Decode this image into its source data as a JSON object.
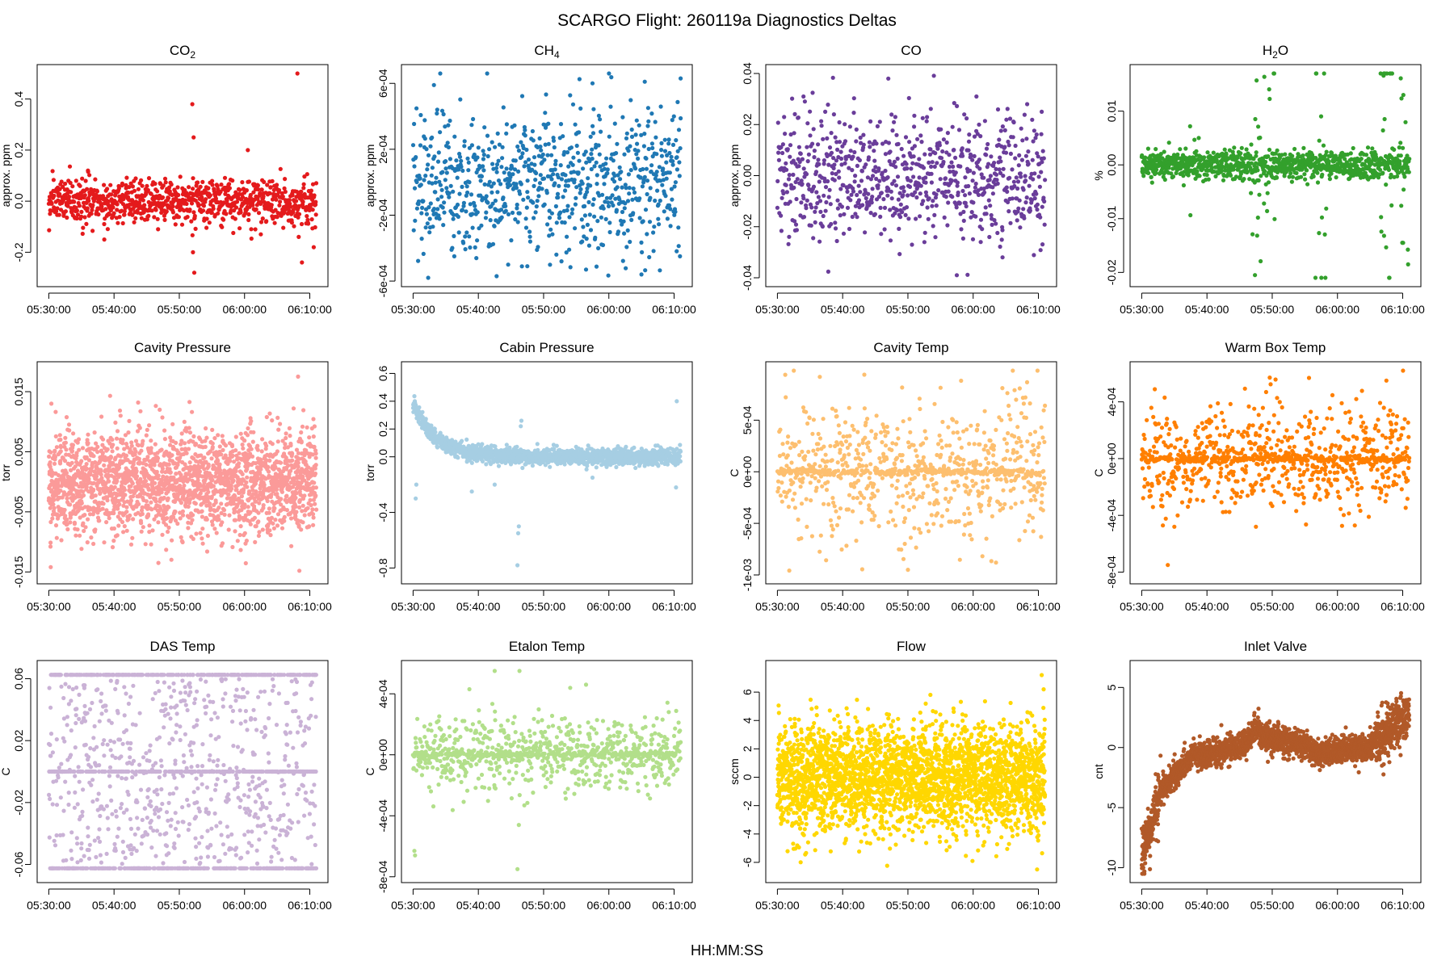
{
  "figure": {
    "title": "SCARGO Flight: 260119a  Diagnostics Deltas",
    "xlabel": "HH:MM:SS"
  },
  "chart_data": [
    {
      "type": "scatter",
      "title": "CO",
      "title_sub": "2",
      "ylabel": "approx. ppm",
      "color": "#e41a1c",
      "ylim": [
        -0.3,
        0.5
      ],
      "yticks": [
        {
          "v": -0.2,
          "label": "-0.2"
        },
        {
          "v": 0.0,
          "label": "0.0"
        },
        {
          "v": 0.2,
          "label": "0.2"
        },
        {
          "v": 0.4,
          "label": "0.4"
        }
      ],
      "xticks": [
        "05:30:00",
        "05:40:00",
        "05:50:00",
        "06:00:00",
        "06:10:00"
      ],
      "xlim_min": [
        0,
        41
      ],
      "model": {
        "n": 900,
        "spread": 0.045,
        "outliers": [
          [
            22.0,
            0.38
          ],
          [
            22.2,
            0.25
          ],
          [
            22.3,
            -0.28
          ],
          [
            22.1,
            -0.2
          ],
          [
            38.1,
            0.51
          ],
          [
            38.3,
            -0.14
          ],
          [
            38.8,
            -0.24
          ],
          [
            6.0,
            0.12
          ],
          [
            30.5,
            0.2
          ],
          [
            40.6,
            -0.18
          ],
          [
            8.5,
            -0.15
          ],
          [
            32.5,
            -0.13
          ]
        ]
      }
    },
    {
      "type": "scatter",
      "title": "CH",
      "title_sub": "4",
      "ylabel": "approx. ppm",
      "color": "#1f78b4",
      "ylim": [
        -0.00058,
        0.00066
      ],
      "yticks": [
        {
          "v": -0.0006,
          "label": "-6e-04"
        },
        {
          "v": -0.0002,
          "label": "-2e-04"
        },
        {
          "v": 0.0002,
          "label": "2e-04"
        },
        {
          "v": 0.0006,
          "label": "6e-04"
        }
      ],
      "xticks": [
        "05:30:00",
        "05:40:00",
        "05:50:00",
        "06:00:00",
        "06:10:00"
      ],
      "xlim_min": [
        0,
        41
      ],
      "model": {
        "n": 800,
        "spread": 0.00022,
        "outliers": [
          [
            41,
            0.00063
          ],
          [
            3.2,
            0.00059
          ],
          [
            27.5,
            0.0006
          ],
          [
            35.5,
            0.00061
          ],
          [
            12.8,
            -0.00057
          ],
          [
            35.0,
            -0.00056
          ],
          [
            26.5,
            -0.00053
          ],
          [
            17.5,
            -0.00051
          ]
        ]
      }
    },
    {
      "type": "scatter",
      "title": "CO",
      "title_sub": "",
      "ylabel": "approx. ppm",
      "color": "#6a3d9a",
      "ylim": [
        -0.04,
        0.04
      ],
      "yticks": [
        {
          "v": -0.04,
          "label": "-0.04"
        },
        {
          "v": -0.02,
          "label": "-0.02"
        },
        {
          "v": 0.0,
          "label": "0.00"
        },
        {
          "v": 0.02,
          "label": "0.02"
        },
        {
          "v": 0.04,
          "label": "0.04"
        }
      ],
      "xticks": [
        "05:30:00",
        "05:40:00",
        "05:50:00",
        "06:00:00",
        "06:10:00"
      ],
      "xlim_min": [
        0,
        41
      ],
      "model": {
        "n": 800,
        "spread": 0.012,
        "outliers": [
          [
            17,
            0.038
          ],
          [
            27.5,
            -0.039
          ],
          [
            30.5,
            0.031
          ],
          [
            4.0,
            0.031
          ],
          [
            40.5,
            0.025
          ],
          [
            34.5,
            -0.032
          ]
        ]
      }
    },
    {
      "type": "scatter",
      "title": "H",
      "title_sub": "2",
      "title_suffix": "O",
      "ylabel": "%",
      "color": "#33a02c",
      "ylim": [
        -0.021,
        0.017
      ],
      "yticks": [
        {
          "v": -0.02,
          "label": "-0.02"
        },
        {
          "v": -0.01,
          "label": "-0.01"
        },
        {
          "v": 0.0,
          "label": "0.00"
        },
        {
          "v": 0.01,
          "label": "0.01"
        }
      ],
      "xticks": [
        "05:30:00",
        "05:40:00",
        "05:50:00",
        "06:00:00",
        "06:10:00"
      ],
      "xlim_min": [
        0,
        41
      ],
      "model": {
        "n": 1000,
        "spread": 0.0013,
        "bursts": [
          [
            8.0,
            0.006
          ],
          [
            17.5,
            0.011
          ],
          [
            19.5,
            0.012
          ],
          [
            27.5,
            0.018
          ],
          [
            37.5,
            0.017
          ],
          [
            40.5,
            0.017
          ]
        ]
      }
    },
    {
      "type": "scatter",
      "title": "Cavity Pressure",
      "title_sub": "",
      "ylabel": "torr",
      "color": "#fb9a99",
      "ylim": [
        -0.0155,
        0.0185
      ],
      "yticks": [
        {
          "v": -0.015,
          "label": "-0.015"
        },
        {
          "v": -0.005,
          "label": "-0.005"
        },
        {
          "v": 0.005,
          "label": "0.005"
        },
        {
          "v": 0.015,
          "label": "0.015"
        }
      ],
      "xticks": [
        "05:30:00",
        "05:40:00",
        "05:50:00",
        "06:00:00",
        "06:10:00"
      ],
      "xlim_min": [
        0,
        41
      ],
      "model": {
        "n": 2200,
        "spread": 0.0042,
        "outliers": [
          [
            38.2,
            0.0175
          ],
          [
            38.4,
            -0.0148
          ],
          [
            0.3,
            -0.0142
          ],
          [
            0.4,
            0.013
          ],
          [
            17,
            0.012
          ],
          [
            11,
            0.011
          ],
          [
            16.8,
            -0.0135
          ]
        ]
      }
    },
    {
      "type": "scatter",
      "title": "Cabin Pressure",
      "title_sub": "",
      "ylabel": "torr",
      "color": "#a6cee3",
      "ylim": [
        -0.85,
        0.62
      ],
      "yticks": [
        {
          "v": -0.8,
          "label": "-0.8"
        },
        {
          "v": -0.4,
          "label": "-0.4"
        },
        {
          "v": 0.0,
          "label": "0.0"
        },
        {
          "v": 0.2,
          "label": "0.2"
        },
        {
          "v": 0.4,
          "label": "0.4"
        },
        {
          "v": 0.6,
          "label": "0.6"
        }
      ],
      "xticks": [
        "05:30:00",
        "05:40:00",
        "05:50:00",
        "06:00:00",
        "06:10:00"
      ],
      "xlim_min": [
        0,
        41
      ],
      "model": {
        "n": 1400,
        "spread": 0.03,
        "decay": {
          "start": 0.38,
          "tau": 3.5
        },
        "outliers": [
          [
            16.0,
            -0.78
          ],
          [
            16.1,
            -0.55
          ],
          [
            16.2,
            -0.5
          ],
          [
            0.4,
            -0.3
          ],
          [
            0.5,
            -0.2
          ],
          [
            9,
            -0.25
          ],
          [
            12.5,
            -0.2
          ],
          [
            16.5,
            0.22
          ],
          [
            16.6,
            0.26
          ],
          [
            27.5,
            -0.15
          ],
          [
            40.4,
            0.4
          ],
          [
            40.3,
            -0.22
          ]
        ]
      }
    },
    {
      "type": "scatter",
      "title": "Cavity Temp",
      "title_sub": "",
      "ylabel": "C",
      "color": "#fdbf6f",
      "ylim": [
        -0.001,
        0.00098
      ],
      "yticks": [
        {
          "v": -0.001,
          "label": "-1e-03"
        },
        {
          "v": -0.0005,
          "label": "-5e-04"
        },
        {
          "v": 0.0,
          "label": "0e+00"
        },
        {
          "v": 0.0005,
          "label": "5e-04"
        }
      ],
      "xticks": [
        "05:30:00",
        "05:40:00",
        "05:50:00",
        "06:00:00",
        "06:10:00"
      ],
      "xlim_min": [
        0,
        41
      ],
      "model": {
        "n": 900,
        "spread": 0.00033,
        "band": 1.5e-05,
        "outliers": [
          [
            1.2,
            0.00094
          ],
          [
            20,
            -0.00095
          ],
          [
            6.5,
            0.00092
          ],
          [
            33.5,
            -0.00088
          ]
        ]
      }
    },
    {
      "type": "scatter",
      "title": "Warm Box Temp",
      "title_sub": "",
      "ylabel": "C",
      "color": "#ff7f00",
      "ylim": [
        -0.00082,
        0.00062
      ],
      "yticks": [
        {
          "v": -0.0008,
          "label": "-8e-04"
        },
        {
          "v": -0.0004,
          "label": "-4e-04"
        },
        {
          "v": 0.0,
          "label": "0e+00"
        },
        {
          "v": 0.0004,
          "label": "4e-04"
        }
      ],
      "xticks": [
        "05:30:00",
        "05:40:00",
        "05:50:00",
        "06:00:00",
        "06:10:00"
      ],
      "xlim_min": [
        0,
        41
      ],
      "model": {
        "n": 900,
        "spread": 0.00019,
        "band": 1.2e-05,
        "outliers": [
          [
            4.0,
            -0.00075
          ],
          [
            5.0,
            -0.00048
          ],
          [
            17.5,
            -0.00048
          ],
          [
            37.5,
            0.00055
          ]
        ]
      }
    },
    {
      "type": "scatter",
      "title": "DAS Temp",
      "title_sub": "",
      "ylabel": "C",
      "color": "#cab2d6",
      "ylim": [
        -0.066,
        0.066
      ],
      "yticks": [
        {
          "v": -0.06,
          "label": "-0.06"
        },
        {
          "v": -0.02,
          "label": "-0.02"
        },
        {
          "v": 0.02,
          "label": "0.02"
        },
        {
          "v": 0.06,
          "label": "0.06"
        }
      ],
      "xticks": [
        "05:30:00",
        "05:40:00",
        "05:50:00",
        "06:00:00",
        "06:10:00"
      ],
      "xlim_min": [
        0,
        41
      ],
      "model": {
        "n": 1500,
        "levels": [
          0.0625,
          0.0,
          -0.0625
        ]
      }
    },
    {
      "type": "scatter",
      "title": "Etalon Temp",
      "title_sub": "",
      "ylabel": "C",
      "color": "#b2df8a",
      "ylim": [
        -0.00078,
        0.00056
      ],
      "yticks": [
        {
          "v": -0.0008,
          "label": "-8e-04"
        },
        {
          "v": -0.0004,
          "label": "-4e-04"
        },
        {
          "v": 0.0,
          "label": "0e+00"
        },
        {
          "v": 0.0004,
          "label": "4e-04"
        }
      ],
      "xticks": [
        "05:30:00",
        "05:40:00",
        "05:50:00",
        "06:00:00",
        "06:10:00"
      ],
      "xlim_min": [
        0,
        41
      ],
      "model": {
        "n": 900,
        "spread": 0.00012,
        "band": 1e-05,
        "outliers": [
          [
            0.2,
            -0.00063
          ],
          [
            0.3,
            -0.00066
          ],
          [
            12.5,
            0.00055
          ],
          [
            16.3,
            0.00055
          ],
          [
            16.0,
            -0.00075
          ],
          [
            16.2,
            -0.00046
          ],
          [
            26.5,
            0.00046
          ]
        ]
      }
    },
    {
      "type": "scatter",
      "title": "Flow",
      "title_sub": "",
      "ylabel": "sccm",
      "color": "#ffd700",
      "ylim": [
        -6.8,
        7.6
      ],
      "yticks": [
        {
          "v": -6,
          "label": "-6"
        },
        {
          "v": -4,
          "label": "-4"
        },
        {
          "v": -2,
          "label": "-2"
        },
        {
          "v": 0,
          "label": "0"
        },
        {
          "v": 2,
          "label": "2"
        },
        {
          "v": 4,
          "label": "4"
        },
        {
          "v": 6,
          "label": "6"
        }
      ],
      "xticks": [
        "05:30:00",
        "05:40:00",
        "05:50:00",
        "06:00:00",
        "06:10:00"
      ],
      "xlim_min": [
        0,
        41
      ],
      "model": {
        "n": 2800,
        "spread": 1.9,
        "outliers": [
          [
            40.5,
            7.2
          ],
          [
            40.8,
            6.2
          ],
          [
            39.8,
            -6.5
          ]
        ]
      }
    },
    {
      "type": "scatter",
      "title": "Inlet Valve",
      "title_sub": "",
      "ylabel": "cnt",
      "color": "#b15928",
      "ylim": [
        -10.5,
        6.5
      ],
      "yticks": [
        {
          "v": -10,
          "label": "-10"
        },
        {
          "v": -5,
          "label": "-5"
        },
        {
          "v": 0,
          "label": "0"
        },
        {
          "v": 5,
          "label": "5"
        }
      ],
      "xticks": [
        "05:30:00",
        "05:40:00",
        "05:50:00",
        "06:00:00",
        "06:10:00"
      ],
      "xlim_min": [
        0,
        41
      ],
      "model": {
        "n": 2400,
        "spread": 0.55,
        "trend": "inlet"
      }
    }
  ]
}
